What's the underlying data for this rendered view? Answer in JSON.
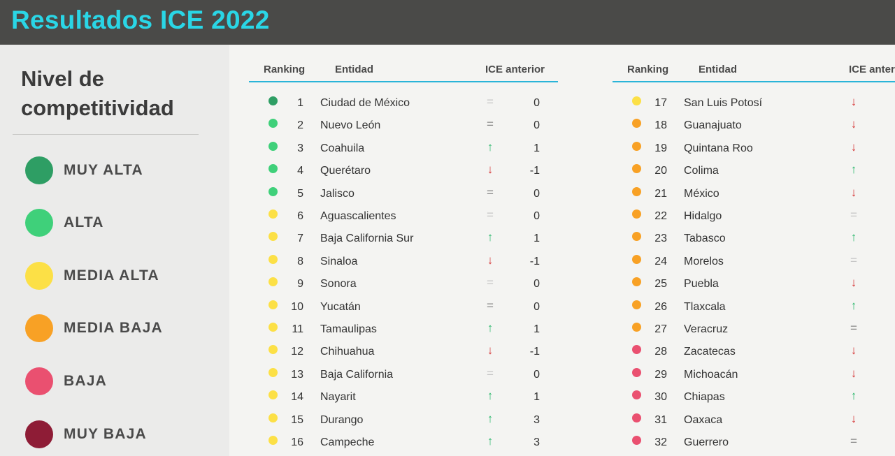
{
  "title": "Resultados ICE 2022",
  "legend": {
    "heading": "Nivel de competitividad",
    "levels": [
      {
        "label": "MUY ALTA",
        "color": "#2e9e64"
      },
      {
        "label": "ALTA",
        "color": "#3fd07a"
      },
      {
        "label": "MEDIA ALTA",
        "color": "#fce046"
      },
      {
        "label": "MEDIA BAJA",
        "color": "#f8a125"
      },
      {
        "label": "BAJA",
        "color": "#ea5070"
      },
      {
        "label": "MUY BAJA",
        "color": "#8e1c36"
      }
    ]
  },
  "columns": {
    "ranking": "Ranking",
    "entidad": "Entidad",
    "ice_anterior": "ICE anterior"
  },
  "left_table": [
    {
      "rank": "1",
      "entity": "Ciudad de México",
      "change": "=",
      "change_type": "eq-faint",
      "prev": "0",
      "level_color": "#2e9e64"
    },
    {
      "rank": "2",
      "entity": "Nuevo León",
      "change": "=",
      "change_type": "eq",
      "prev": "0",
      "level_color": "#3fd07a"
    },
    {
      "rank": "3",
      "entity": "Coahuila",
      "change": "↑",
      "change_type": "up",
      "prev": "1",
      "level_color": "#3fd07a"
    },
    {
      "rank": "4",
      "entity": "Querétaro",
      "change": "↓",
      "change_type": "down",
      "prev": "-1",
      "level_color": "#3fd07a"
    },
    {
      "rank": "5",
      "entity": "Jalisco",
      "change": "=",
      "change_type": "eq",
      "prev": "0",
      "level_color": "#3fd07a"
    },
    {
      "rank": "6",
      "entity": "Aguascalientes",
      "change": "=",
      "change_type": "eq-faint",
      "prev": "0",
      "level_color": "#fce046"
    },
    {
      "rank": "7",
      "entity": "Baja California Sur",
      "change": "↑",
      "change_type": "up",
      "prev": "1",
      "level_color": "#fce046"
    },
    {
      "rank": "8",
      "entity": "Sinaloa",
      "change": "↓",
      "change_type": "down",
      "prev": "-1",
      "level_color": "#fce046"
    },
    {
      "rank": "9",
      "entity": "Sonora",
      "change": "=",
      "change_type": "eq-faint",
      "prev": "0",
      "level_color": "#fce046"
    },
    {
      "rank": "10",
      "entity": "Yucatán",
      "change": "=",
      "change_type": "eq",
      "prev": "0",
      "level_color": "#fce046"
    },
    {
      "rank": "11",
      "entity": "Tamaulipas",
      "change": "↑",
      "change_type": "up",
      "prev": "1",
      "level_color": "#fce046"
    },
    {
      "rank": "12",
      "entity": "Chihuahua",
      "change": "↓",
      "change_type": "down",
      "prev": "-1",
      "level_color": "#fce046"
    },
    {
      "rank": "13",
      "entity": "Baja California",
      "change": "=",
      "change_type": "eq-faint",
      "prev": "0",
      "level_color": "#fce046"
    },
    {
      "rank": "14",
      "entity": "Nayarit",
      "change": "↑",
      "change_type": "up",
      "prev": "1",
      "level_color": "#fce046"
    },
    {
      "rank": "15",
      "entity": "Durango",
      "change": "↑",
      "change_type": "up",
      "prev": "3",
      "level_color": "#fce046"
    },
    {
      "rank": "16",
      "entity": "Campeche",
      "change": "↑",
      "change_type": "up",
      "prev": "3",
      "level_color": "#fce046"
    }
  ],
  "right_table": [
    {
      "rank": "17",
      "entity": "San Luis Potosí",
      "change": "↓",
      "change_type": "down",
      "prev": "",
      "level_color": "#fce046"
    },
    {
      "rank": "18",
      "entity": "Guanajuato",
      "change": "↓",
      "change_type": "down",
      "prev": "",
      "level_color": "#f8a125"
    },
    {
      "rank": "19",
      "entity": "Quintana Roo",
      "change": "↓",
      "change_type": "down",
      "prev": "",
      "level_color": "#f8a125"
    },
    {
      "rank": "20",
      "entity": "Colima",
      "change": "↑",
      "change_type": "up",
      "prev": "",
      "level_color": "#f8a125"
    },
    {
      "rank": "21",
      "entity": "México",
      "change": "↓",
      "change_type": "down",
      "prev": "",
      "level_color": "#f8a125"
    },
    {
      "rank": "22",
      "entity": "Hidalgo",
      "change": "=",
      "change_type": "eq-faint",
      "prev": "",
      "level_color": "#f8a125"
    },
    {
      "rank": "23",
      "entity": "Tabasco",
      "change": "↑",
      "change_type": "up",
      "prev": "",
      "level_color": "#f8a125"
    },
    {
      "rank": "24",
      "entity": "Morelos",
      "change": "=",
      "change_type": "eq-faint",
      "prev": "",
      "level_color": "#f8a125"
    },
    {
      "rank": "25",
      "entity": "Puebla",
      "change": "↓",
      "change_type": "down",
      "prev": "",
      "level_color": "#f8a125"
    },
    {
      "rank": "26",
      "entity": "Tlaxcala",
      "change": "↑",
      "change_type": "up",
      "prev": "",
      "level_color": "#f8a125"
    },
    {
      "rank": "27",
      "entity": "Veracruz",
      "change": "=",
      "change_type": "eq",
      "prev": "",
      "level_color": "#f8a125"
    },
    {
      "rank": "28",
      "entity": "Zacatecas",
      "change": "↓",
      "change_type": "down",
      "prev": "",
      "level_color": "#ea5070"
    },
    {
      "rank": "29",
      "entity": "Michoacán",
      "change": "↓",
      "change_type": "down",
      "prev": "",
      "level_color": "#ea5070"
    },
    {
      "rank": "30",
      "entity": "Chiapas",
      "change": "↑",
      "change_type": "up",
      "prev": "",
      "level_color": "#ea5070"
    },
    {
      "rank": "31",
      "entity": "Oaxaca",
      "change": "↓",
      "change_type": "down",
      "prev": "",
      "level_color": "#ea5070"
    },
    {
      "rank": "32",
      "entity": "Guerrero",
      "change": "=",
      "change_type": "eq",
      "prev": "",
      "level_color": "#ea5070"
    }
  ]
}
